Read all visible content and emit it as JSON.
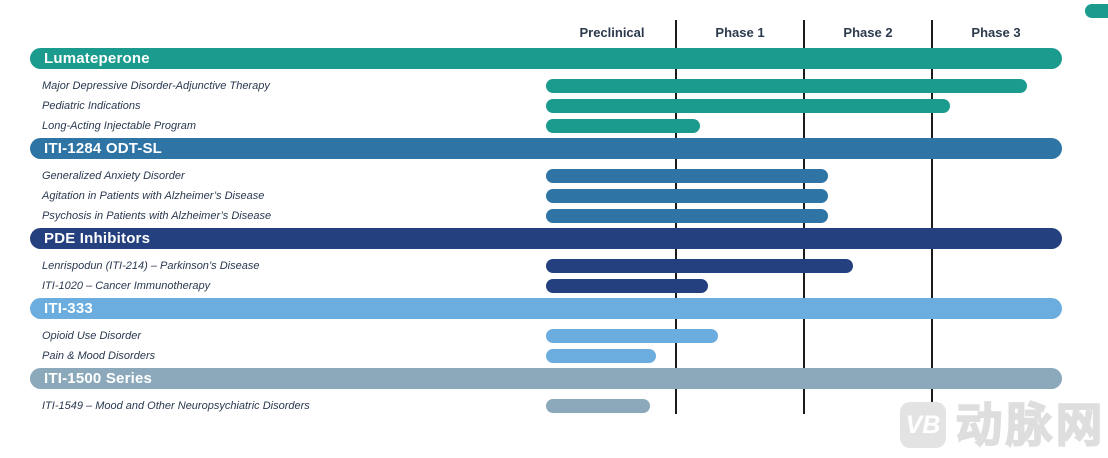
{
  "watermark": {
    "logo_text": "VB",
    "brand_text": "动脉网"
  },
  "accent_color": "#1a9b8e",
  "chart_data": {
    "type": "gantt",
    "title": "",
    "phases": [
      "Preclinical",
      "Phase 1",
      "Phase 2",
      "Phase 3"
    ],
    "layout_hints": {
      "phase_count": 4,
      "gridlines": true,
      "bars_start_at_phase": 0
    },
    "sections": [
      {
        "name": "Lumateperone",
        "color": "#1a9b8e",
        "rows": [
          {
            "label": "Major Depressive Disorder-Adjunctive Therapy",
            "end_phase": 3.74
          },
          {
            "label": "Pediatric Indications",
            "end_phase": 3.14
          },
          {
            "label": "Long-Acting Injectable Program",
            "end_phase": 1.19
          }
        ]
      },
      {
        "name": "ITI-1284 ODT-SL",
        "color": "#2e74a4",
        "rows": [
          {
            "label": "Generalized Anxiety Disorder",
            "end_phase": 2.19
          },
          {
            "label": "Agitation in Patients with Alzheimer’s Disease",
            "end_phase": 2.19
          },
          {
            "label": "Psychosis in Patients with Alzheimer’s Disease",
            "end_phase": 2.19
          }
        ]
      },
      {
        "name": "PDE Inhibitors",
        "color": "#24407e",
        "rows": [
          {
            "label": "Lenrispodun (ITI-214) – Parkinson’s Disease",
            "end_phase": 2.38
          },
          {
            "label": "ITI-1020 – Cancer Immunotherapy",
            "end_phase": 1.25
          }
        ]
      },
      {
        "name": "ITI-333",
        "color": "#6badde",
        "rows": [
          {
            "label": "Opioid Use Disorder",
            "end_phase": 1.33
          },
          {
            "label": "Pain & Mood Disorders",
            "end_phase": 0.84
          }
        ]
      },
      {
        "name": "ITI-1500 Series",
        "color": "#8ba9ba",
        "rows": [
          {
            "label": "ITI-1549 – Mood and Other Neuropsychiatric Disorders",
            "end_phase": 0.8
          }
        ]
      }
    ]
  }
}
